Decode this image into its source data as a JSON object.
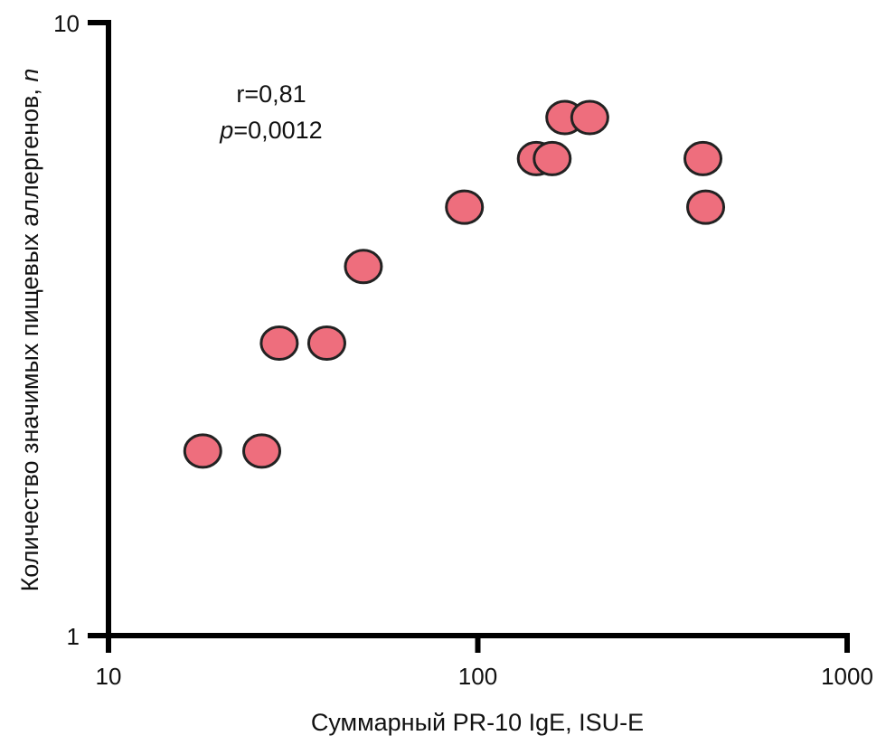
{
  "chart_data": {
    "type": "scatter",
    "title": "",
    "xlabel": "Суммарный PR-10 IgE, ISU-E",
    "ylabel": "Количество значимых пищевых аллергенов, ",
    "ylabel_italic": "n",
    "xscale": "log",
    "yscale": "log",
    "xlim": [
      10,
      1000
    ],
    "ylim": [
      1,
      10
    ],
    "xticks": [
      "10",
      "100",
      "1000"
    ],
    "xtick_values": [
      10,
      100,
      1000
    ],
    "yticks": [
      "1",
      "10"
    ],
    "ytick_values": [
      1,
      10
    ],
    "grid": false,
    "annotation": {
      "r": "r=0,81",
      "p_label": "p",
      "p_value": "=0,0012"
    },
    "marker_color": "#EE6E7D",
    "marker_edge": "#222222",
    "points": [
      {
        "x": 18,
        "y": 2
      },
      {
        "x": 26,
        "y": 2
      },
      {
        "x": 29,
        "y": 3
      },
      {
        "x": 39,
        "y": 3
      },
      {
        "x": 49,
        "y": 4
      },
      {
        "x": 92,
        "y": 5
      },
      {
        "x": 144,
        "y": 6
      },
      {
        "x": 159,
        "y": 6
      },
      {
        "x": 172,
        "y": 7
      },
      {
        "x": 201,
        "y": 7
      },
      {
        "x": 407,
        "y": 6
      },
      {
        "x": 414,
        "y": 5
      }
    ]
  }
}
